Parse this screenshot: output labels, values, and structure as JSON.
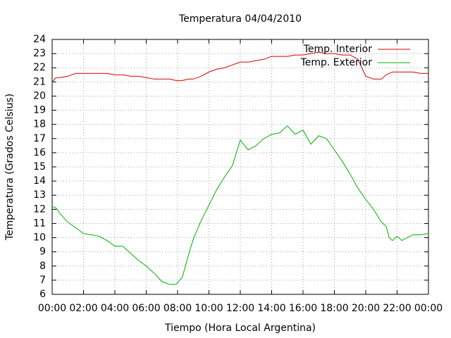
{
  "chart_data": {
    "type": "line",
    "title": "Temperatura 04/04/2010",
    "x_label": "Tiempo (Hora Local Argentina)",
    "y_label": "Temperatura (Grados Celsius)",
    "x": [
      0,
      0.25,
      0.5,
      1,
      1.5,
      2,
      2.5,
      3,
      3.5,
      4,
      4.5,
      5,
      5.5,
      6,
      6.5,
      7,
      7.5,
      7.9,
      8.3,
      8.7,
      9,
      9.5,
      10,
      10.5,
      11,
      11.5,
      12,
      12.5,
      13,
      13.5,
      14,
      14.5,
      15,
      15.5,
      16,
      16.5,
      17,
      17.5,
      18,
      18.5,
      19,
      19.5,
      20,
      20.5,
      21,
      21.3,
      21.5,
      21.7,
      22,
      22.3,
      23,
      23.5,
      24
    ],
    "series": [
      {
        "name": "Temp. Interior",
        "color": "#d00000",
        "values": [
          21.0,
          21.3,
          21.3,
          21.4,
          21.6,
          21.6,
          21.6,
          21.6,
          21.6,
          21.5,
          21.5,
          21.4,
          21.4,
          21.3,
          21.2,
          21.2,
          21.2,
          21.1,
          21.1,
          21.2,
          21.2,
          21.4,
          21.7,
          21.9,
          22.0,
          22.2,
          22.4,
          22.4,
          22.5,
          22.6,
          22.8,
          22.8,
          22.8,
          22.9,
          22.9,
          23.0,
          23.1,
          23.0,
          23.0,
          22.9,
          22.9,
          22.6,
          21.4,
          21.2,
          21.2,
          21.5,
          21.6,
          21.7,
          21.7,
          21.7,
          21.7,
          21.6,
          21.6
        ]
      },
      {
        "name": "Temp. Exterior",
        "color": "#00b000",
        "values": [
          12.2,
          12.1,
          11.7,
          11.1,
          10.7,
          10.3,
          10.2,
          10.1,
          9.8,
          9.4,
          9.4,
          8.9,
          8.4,
          8.0,
          7.5,
          6.9,
          6.7,
          6.7,
          7.2,
          8.8,
          9.9,
          11.2,
          12.3,
          13.4,
          14.3,
          15.1,
          16.9,
          16.2,
          16.5,
          17.0,
          17.3,
          17.4,
          17.9,
          17.3,
          17.6,
          16.6,
          17.2,
          17.0,
          16.2,
          15.4,
          14.5,
          13.5,
          12.7,
          12.0,
          11.1,
          10.8,
          10.0,
          9.8,
          10.1,
          9.8,
          10.2,
          10.2,
          10.3
        ]
      }
    ],
    "xlim": [
      0,
      24
    ],
    "xticks": [
      {
        "value": 0,
        "label": "00:00"
      },
      {
        "value": 2,
        "label": "02:00"
      },
      {
        "value": 4,
        "label": "04:00"
      },
      {
        "value": 6,
        "label": "06:00"
      },
      {
        "value": 8,
        "label": "08:00"
      },
      {
        "value": 10,
        "label": "10:00"
      },
      {
        "value": 12,
        "label": "12:00"
      },
      {
        "value": 14,
        "label": "14:00"
      },
      {
        "value": 16,
        "label": "16:00"
      },
      {
        "value": 18,
        "label": "18:00"
      },
      {
        "value": 20,
        "label": "20:00"
      },
      {
        "value": 22,
        "label": "22:00"
      },
      {
        "value": 24,
        "label": "00:00"
      }
    ],
    "ylim": [
      6,
      24
    ],
    "yticks": [
      6,
      7,
      8,
      9,
      10,
      11,
      12,
      13,
      14,
      15,
      16,
      17,
      18,
      19,
      20,
      21,
      22,
      23,
      24
    ],
    "grid": true,
    "legend": "top-right"
  }
}
